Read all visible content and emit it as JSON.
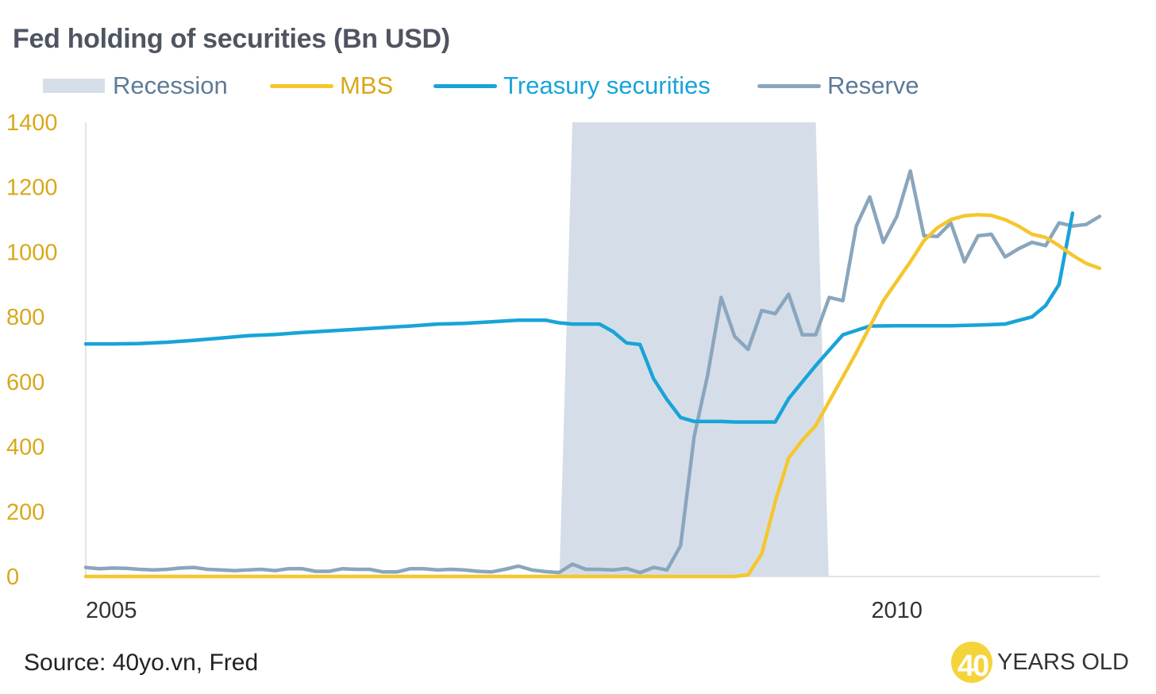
{
  "chart_data": {
    "type": "line",
    "title": "Fed holding of securities (Bn USD)",
    "xlabel": "",
    "ylabel": "",
    "ylim": [
      0,
      1400
    ],
    "yticks": [
      0,
      200,
      400,
      600,
      800,
      1000,
      1200,
      1400
    ],
    "xlim": [
      2005.0,
      2011.25
    ],
    "xticks": [
      2005,
      2010
    ],
    "xtick_labels": [
      "2005",
      "2010"
    ],
    "recession": {
      "name": "Recession",
      "start_top": 2008.0,
      "end_top": 2009.5,
      "start_bottom": 2007.92,
      "end_bottom": 2009.58
    },
    "series": [
      {
        "name": "MBS",
        "color": "#f5c62e",
        "x": [
          2005.0,
          2006.0,
          2007.0,
          2008.0,
          2009.0,
          2009.083,
          2009.167,
          2009.25,
          2009.333,
          2009.417,
          2009.5,
          2009.583,
          2009.667,
          2009.75,
          2009.833,
          2009.917,
          2010.0,
          2010.083,
          2010.167,
          2010.25,
          2010.333,
          2010.417,
          2010.5,
          2010.583,
          2010.667,
          2010.75,
          2010.833,
          2010.917,
          2011.0,
          2011.083,
          2011.167,
          2011.25
        ],
        "values": [
          0,
          0,
          0,
          0,
          0,
          5,
          70,
          230,
          365,
          420,
          465,
          540,
          615,
          690,
          770,
          850,
          910,
          970,
          1035,
          1075,
          1100,
          1112,
          1115,
          1113,
          1100,
          1080,
          1055,
          1045,
          1020,
          990,
          965,
          950
        ]
      },
      {
        "name": "Treasury securities",
        "color": "#18a4d8",
        "x": [
          2005.0,
          2005.167,
          2005.333,
          2005.5,
          2005.667,
          2005.833,
          2006.0,
          2006.167,
          2006.333,
          2006.5,
          2006.667,
          2006.833,
          2007.0,
          2007.167,
          2007.333,
          2007.5,
          2007.667,
          2007.833,
          2007.917,
          2008.0,
          2008.083,
          2008.167,
          2008.25,
          2008.333,
          2008.417,
          2008.5,
          2008.583,
          2008.667,
          2008.75,
          2008.833,
          2008.917,
          2009.0,
          2009.083,
          2009.167,
          2009.25,
          2009.333,
          2009.417,
          2009.5,
          2009.667,
          2009.833,
          2010.0,
          2010.167,
          2010.333,
          2010.5,
          2010.667,
          2010.833,
          2010.917,
          2011.0,
          2011.083
        ],
        "values": [
          717,
          717,
          718,
          722,
          728,
          735,
          742,
          746,
          752,
          757,
          762,
          767,
          772,
          778,
          780,
          785,
          790,
          790,
          782,
          778,
          778,
          778,
          755,
          720,
          715,
          610,
          545,
          490,
          478,
          478,
          478,
          476,
          476,
          476,
          476,
          548,
          600,
          650,
          745,
          772,
          773,
          773,
          773,
          775,
          778,
          800,
          835,
          900,
          1120
        ]
      },
      {
        "name": "Reserve",
        "color": "#8aa6be",
        "x": [
          2005.0,
          2005.083,
          2005.167,
          2005.25,
          2005.333,
          2005.417,
          2005.5,
          2005.583,
          2005.667,
          2005.75,
          2005.833,
          2005.917,
          2006.0,
          2006.083,
          2006.167,
          2006.25,
          2006.333,
          2006.417,
          2006.5,
          2006.583,
          2006.667,
          2006.75,
          2006.833,
          2006.917,
          2007.0,
          2007.083,
          2007.167,
          2007.25,
          2007.333,
          2007.417,
          2007.5,
          2007.583,
          2007.667,
          2007.75,
          2007.833,
          2007.917,
          2008.0,
          2008.083,
          2008.167,
          2008.25,
          2008.333,
          2008.417,
          2008.5,
          2008.583,
          2008.667,
          2008.75,
          2008.833,
          2008.917,
          2009.0,
          2009.083,
          2009.167,
          2009.25,
          2009.333,
          2009.417,
          2009.5,
          2009.583,
          2009.667,
          2009.75,
          2009.833,
          2009.917,
          2010.0,
          2010.083,
          2010.167,
          2010.25,
          2010.333,
          2010.417,
          2010.5,
          2010.583,
          2010.667,
          2010.75,
          2010.833,
          2010.917,
          2011.0,
          2011.083,
          2011.167,
          2011.25
        ],
        "values": [
          28,
          24,
          26,
          25,
          22,
          20,
          22,
          26,
          28,
          22,
          20,
          18,
          20,
          22,
          18,
          24,
          24,
          16,
          16,
          24,
          22,
          22,
          14,
          14,
          24,
          24,
          20,
          22,
          20,
          16,
          14,
          22,
          32,
          20,
          15,
          12,
          38,
          22,
          22,
          20,
          25,
          12,
          28,
          20,
          95,
          430,
          620,
          860,
          740,
          700,
          820,
          810,
          870,
          745,
          745,
          860,
          850,
          1080,
          1170,
          1030,
          1110,
          1250,
          1050,
          1048,
          1090,
          970,
          1050,
          1055,
          985,
          1010,
          1030,
          1020,
          1090,
          1080,
          1085,
          1110
        ]
      }
    ]
  },
  "legend": [
    {
      "label": "Recession",
      "text_color": "#5f7b96"
    },
    {
      "label": "MBS",
      "text_color": "#d8a81c"
    },
    {
      "label": "Treasury securities",
      "text_color": "#18a4d8"
    },
    {
      "label": "Reserve",
      "text_color": "#5c7a99"
    }
  ],
  "colors": {
    "axis_text": "#d8a81c",
    "recession_fill": "#d5dee8",
    "axis_line": "#dcdcdc",
    "logo_yellow": "#f5d33a"
  },
  "source": "Source: 40yo.vn, Fred",
  "logo": {
    "number": "40",
    "text": "YEARS OLD"
  }
}
